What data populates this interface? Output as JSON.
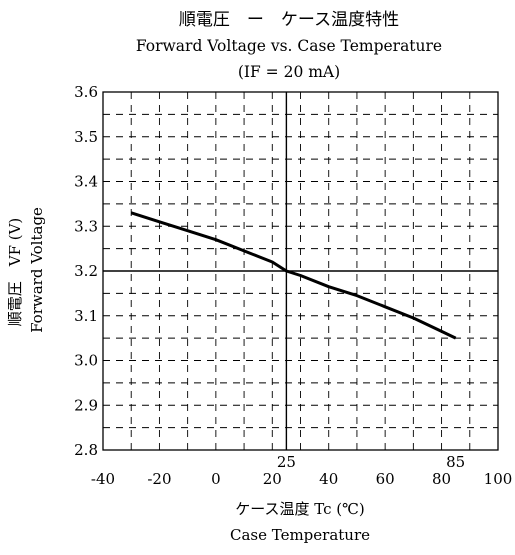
{
  "chart_data": {
    "type": "line",
    "title": "順電圧　ー　ケース温度特性",
    "subtitle": "Forward Voltage vs. Case Temperature",
    "condition": "(IF = 20 mA)",
    "xlabel": "ケース温度 Tc (℃)",
    "xlabel_en": "Case Temperature",
    "ylabel": "順電圧　VF (V)",
    "ylabel_en": "Forward Voltage",
    "xlim": [
      -40,
      100
    ],
    "ylim": [
      2.8,
      3.6
    ],
    "x_ticks": [
      -40,
      -20,
      0,
      20,
      40,
      60,
      80,
      100
    ],
    "x_tick_labels": [
      "-40",
      "-20",
      "0",
      "20",
      "40",
      "60",
      "80",
      "100"
    ],
    "y_ticks": [
      2.8,
      2.9,
      3.0,
      3.1,
      3.2,
      3.3,
      3.4,
      3.5,
      3.6
    ],
    "y_tick_labels": [
      "2.8",
      "2.9",
      "3.0",
      "3.1",
      "3.2",
      "3.3",
      "3.4",
      "3.5",
      "3.6"
    ],
    "grid": "dashed",
    "reference_lines": {
      "x": 25,
      "x_label": "25",
      "y": 3.2,
      "extra_x_label_at": 85,
      "extra_x_label": "85"
    },
    "series": [
      {
        "x": [
          -30,
          -20,
          -10,
          0,
          10,
          20,
          25,
          30,
          40,
          50,
          60,
          70,
          80,
          85
        ],
        "values": [
          3.33,
          3.31,
          3.29,
          3.27,
          3.245,
          3.22,
          3.2,
          3.19,
          3.165,
          3.145,
          3.12,
          3.095,
          3.065,
          3.05
        ]
      }
    ],
    "colors": {
      "line": "#000000",
      "grid": "#000000"
    }
  }
}
